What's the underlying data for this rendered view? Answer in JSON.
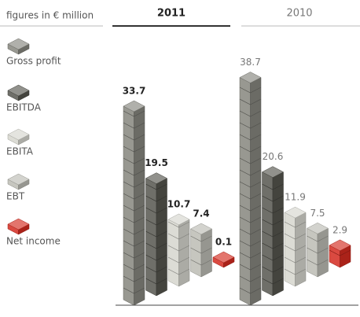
{
  "chart_data": {
    "type": "bar",
    "unit_label": "figures in € million",
    "categories": [
      "2011",
      "2010"
    ],
    "series": [
      {
        "name": "Gross profit",
        "color": "#86867e",
        "values": [
          33.7,
          38.7
        ]
      },
      {
        "name": "EBITDA",
        "color": "#55554e",
        "values": [
          19.5,
          20.6
        ]
      },
      {
        "name": "EBITA",
        "color": "#d6d6ce",
        "values": [
          10.7,
          11.9
        ]
      },
      {
        "name": "EBT",
        "color": "#bcbcb4",
        "values": [
          7.4,
          7.5
        ]
      },
      {
        "name": "Net income",
        "color": "#d42a1f",
        "values": [
          0.1,
          2.9
        ]
      }
    ]
  }
}
